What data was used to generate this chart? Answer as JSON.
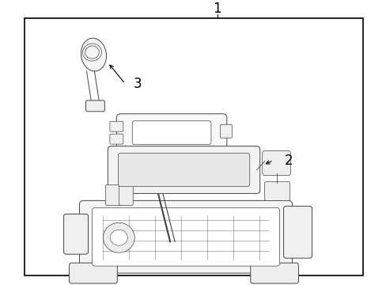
{
  "background_color": "#ffffff",
  "border_color": "#000000",
  "border_linewidth": 1.0,
  "title_label": "1",
  "title_fontsize": 12,
  "label2_text": "2",
  "label2_fontsize": 12,
  "label3_text": "3",
  "label3_fontsize": 12,
  "line_color": "#444444",
  "line_width": 0.7
}
